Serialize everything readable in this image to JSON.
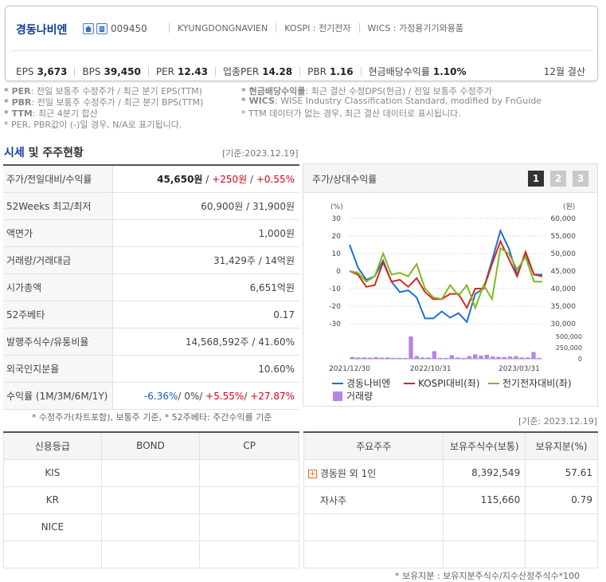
{
  "header": {
    "name": "경동나비엔",
    "code": "009450",
    "eng_name": "KYUNGDONGNAVIEN",
    "market": "KOSPI : 전기전자",
    "wics": "WICS : 가정용기기와용품",
    "metrics": [
      {
        "label": "EPS",
        "value": "3,673"
      },
      {
        "label": "BPS",
        "value": "39,450"
      },
      {
        "label": "PER",
        "value": "12.43"
      },
      {
        "label": "업종PER",
        "value": "14.28"
      },
      {
        "label": "PBR",
        "value": "1.16"
      },
      {
        "label": "현금배당수익률",
        "value": "1.10%"
      }
    ],
    "fiscal": "12월 결산"
  },
  "notes": {
    "per_key": "* PER",
    "per_text": ": 전일 보통주 수정주가 / 최근 분기 EPS(TTM)",
    "pbr_key": "* PBR",
    "pbr_text": ": 전일 보통주 수정주가 / 최근 분기 BPS(TTM)",
    "ttm_key": "* TTM",
    "ttm_text": ": 최근 4분기 합산",
    "negative": "* PER, PBR값이 (-)일 경우, N/A로 표기됩니다.",
    "div_key": "* 현금배당수익률",
    "div_text": ": 최근 결산 수정DPS(현금) / 전일 보통주 수정주가",
    "wics_key": "* WICS",
    "wics_text": ": WISE Industry Classification Standard, modified by FnGuide",
    "ttm_missing": "* TTM 데이터가 없는 경우, 최근 결산 데이터로 표시됩니다."
  },
  "price_section": {
    "title_a": "시세",
    "title_b": " 및 주주현황",
    "date": "[기준:2023.12.19]",
    "rows": [
      {
        "label": "주가/전일대비/수익률"
      },
      {
        "label": "52Weeks 최고/최저",
        "value": "60,900원 / 31,900원"
      },
      {
        "label": "액면가",
        "value": "1,000원"
      },
      {
        "label": "거래량/거래대금",
        "value": "31,429주 / 14억원"
      },
      {
        "label": "시가총액",
        "value": "6,651억원"
      },
      {
        "label": "52주베타",
        "value": "0.17"
      },
      {
        "label": "발행주식수/유통비율",
        "value": "14,568,592주 / 41.60%"
      },
      {
        "label": "외국인지분율",
        "value": "10.60%"
      },
      {
        "label": "수익률 (1M/3M/6M/1Y)"
      }
    ],
    "price": "45,650원",
    "slash": " / ",
    "change": "+250원",
    "change_pct": "+0.55%",
    "ret_1m": "-6.36%",
    "ret_3m": "0%",
    "ret_6m": "+5.55%",
    "ret_1y": "+27.87%",
    "footnote": "* 수정주가(차트포함), 보통주 기준, * 52주베타: 주간수익률 기준"
  },
  "chart_panel": {
    "title": "주가/상대수익률",
    "pages": [
      "1",
      "2",
      "3"
    ],
    "colors": {
      "price": "#1f6fd1",
      "kospi": "#d42a1e",
      "sector": "#7dbb1f",
      "volume": "#b585e3"
    }
  },
  "chart_data": {
    "type": "line",
    "left_unit": "(%)",
    "right_unit": "(원)",
    "left_ticks": [
      "30",
      "20",
      "10",
      "0",
      "-10",
      "-20",
      "-30"
    ],
    "right_ticks": [
      "60,000",
      "55,000",
      "50,000",
      "45,000",
      "40,000",
      "35,000",
      "30,000"
    ],
    "volume_ticks": [
      "500,000",
      "250,000",
      "0"
    ],
    "x_labels": [
      "2021/12/30",
      "2022/10/31",
      "2023/03/31"
    ],
    "ylim_left": [
      -30,
      30
    ],
    "ylim_right": [
      30000,
      60000
    ],
    "series": [
      {
        "name": "경동나비엔",
        "axis": "right",
        "values": [
          52500,
          46000,
          42500,
          43500,
          48000,
          42000,
          39000,
          39500,
          37500,
          31500,
          31500,
          33500,
          31700,
          33000,
          30500,
          38500,
          40000,
          48000,
          56500,
          51500,
          44000,
          50000,
          44000,
          44000
        ]
      },
      {
        "name": "KOSPI대비(좌)",
        "axis": "left",
        "values": [
          0,
          -2,
          -9,
          -8,
          5,
          -6,
          -5,
          -9,
          -4,
          -12,
          -16,
          -16,
          -13,
          -13,
          -21,
          -10,
          -10,
          4,
          17,
          7,
          -3,
          11,
          -2,
          -3
        ]
      },
      {
        "name": "전기전자대비(좌)",
        "axis": "left",
        "values": [
          0,
          -1,
          -6,
          -3,
          10,
          -2,
          -1,
          -3,
          4,
          -10,
          -15,
          -16,
          -8,
          -14,
          -8,
          -21,
          -8,
          -16,
          13,
          10,
          1,
          8,
          -6,
          -6
        ]
      },
      {
        "name": "거래량",
        "axis": "volume",
        "values": [
          40000,
          30000,
          30000,
          25000,
          35000,
          25000,
          30000,
          20000,
          20000,
          20000,
          500000,
          60000,
          30000,
          30000,
          170000,
          20000,
          20000,
          80000,
          30000,
          20000,
          60000,
          100000,
          70000,
          90000,
          50000,
          40000,
          40000,
          50000,
          60000,
          30000,
          30000,
          150000,
          20000
        ]
      }
    ],
    "volume_ylim": [
      0,
      500000
    ]
  },
  "credit": {
    "headers": [
      "신용등급",
      "BOND",
      "CP"
    ],
    "rows": [
      "KIS",
      "KR",
      "NICE"
    ]
  },
  "holders": {
    "date": "[기준: 2023.12.19]",
    "headers": [
      "주요주주",
      "보유주식수(보통)",
      "보유지분(%)"
    ],
    "rows": [
      {
        "name": "경동원 외 1인",
        "shares": "8,392,549",
        "pct": "57.61"
      },
      {
        "name": "자사주",
        "shares": "115,660",
        "pct": "0.79"
      }
    ],
    "footnote": "* 보유지분 : 보유지분주식수/지수산정주식수*100"
  }
}
